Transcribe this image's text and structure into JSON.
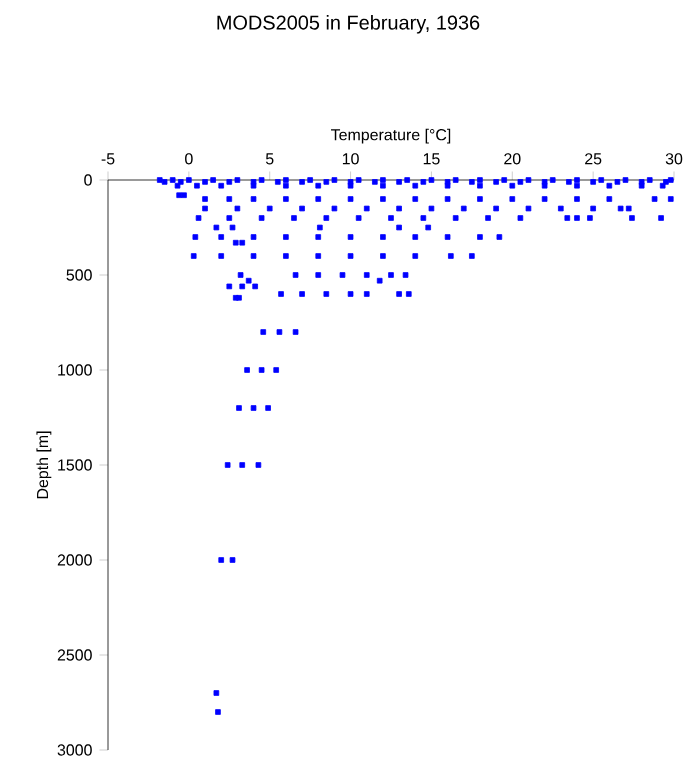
{
  "chart_data": {
    "type": "scatter",
    "title": "MODS2005 in February, 1936",
    "xlabel": "Temperature [°C]",
    "ylabel": "Depth [m]",
    "xlim": [
      -5,
      30
    ],
    "xticks": [
      -5,
      0,
      5,
      10,
      15,
      20,
      25,
      30
    ],
    "ylim": [
      3000,
      0
    ],
    "yticks": [
      0,
      500,
      1000,
      1500,
      2000,
      2500,
      3000
    ],
    "marker": "square",
    "color": "#0000ff",
    "x": [
      -1.8,
      -1,
      0,
      1.5,
      3,
      4.5,
      6,
      7.5,
      9,
      10.5,
      12,
      13.5,
      15,
      16.5,
      18,
      19.5,
      21,
      22.5,
      24,
      25.5,
      27,
      28.5,
      29.8,
      -1.5,
      -0.5,
      1,
      2.5,
      4,
      5.5,
      7,
      8.5,
      10,
      11.5,
      13,
      14.5,
      16,
      17.5,
      19,
      20.5,
      22,
      23.5,
      25,
      26.5,
      28,
      29.5,
      -0.7,
      0.5,
      2,
      4,
      6,
      8,
      10,
      12,
      14,
      16,
      18,
      20,
      22,
      24,
      26,
      28,
      29.3,
      -0.6,
      -0.3,
      1,
      2.5,
      4,
      6,
      8,
      10,
      12,
      14,
      16,
      18,
      20,
      22,
      24,
      26,
      28.8,
      29.8,
      1,
      3,
      5,
      7,
      9,
      11,
      13,
      15,
      17,
      19,
      21,
      23,
      25,
      26.7,
      27.2,
      0.6,
      2.5,
      4.5,
      6.5,
      8.5,
      10.5,
      12.5,
      14.5,
      16.5,
      18.5,
      20.5,
      23.4,
      24,
      24.8,
      27.4,
      29.2,
      1.7,
      2.7,
      8.1,
      13,
      14.8,
      0.4,
      2,
      4,
      6,
      8,
      10,
      12,
      14,
      16,
      18,
      19.2,
      2.9,
      3.3,
      0.3,
      2,
      4,
      6,
      8,
      10,
      12,
      14,
      16.2,
      17.5,
      3.2,
      6.6,
      8,
      9.5,
      11,
      12.5,
      13.4,
      3.7,
      11.8,
      2.5,
      3.3,
      4.1,
      5.7,
      7,
      8.5,
      10,
      11,
      13,
      13.6,
      2.9,
      3.1,
      4.6,
      5.6,
      6.6,
      3.6,
      4.5,
      5.4,
      3.1,
      4,
      4.9,
      2.4,
      3.3,
      4.3,
      2.0,
      2.7,
      1.7,
      1.8
    ],
    "values": [
      0,
      0,
      0,
      0,
      0,
      0,
      0,
      0,
      0,
      0,
      0,
      0,
      0,
      0,
      0,
      0,
      0,
      0,
      0,
      0,
      0,
      0,
      0,
      10,
      10,
      10,
      10,
      10,
      10,
      10,
      10,
      10,
      10,
      10,
      10,
      10,
      10,
      10,
      10,
      10,
      10,
      10,
      10,
      10,
      10,
      30,
      30,
      30,
      30,
      30,
      30,
      30,
      30,
      30,
      30,
      30,
      30,
      30,
      30,
      30,
      30,
      30,
      80,
      80,
      100,
      100,
      100,
      100,
      100,
      100,
      100,
      100,
      100,
      100,
      100,
      100,
      100,
      100,
      100,
      100,
      150,
      150,
      150,
      150,
      150,
      150,
      150,
      150,
      150,
      150,
      150,
      150,
      150,
      150,
      150,
      200,
      200,
      200,
      200,
      200,
      200,
      200,
      200,
      200,
      200,
      200,
      200,
      200,
      200,
      200,
      200,
      250,
      250,
      250,
      250,
      250,
      300,
      300,
      300,
      300,
      300,
      300,
      300,
      300,
      300,
      300,
      300,
      330,
      330,
      400,
      400,
      400,
      400,
      400,
      400,
      400,
      400,
      400,
      400,
      500,
      500,
      500,
      500,
      500,
      500,
      500,
      530,
      530,
      560,
      560,
      560,
      600,
      600,
      600,
      600,
      600,
      600,
      600,
      620,
      620,
      800,
      800,
      800,
      1000,
      1000,
      1000,
      1200,
      1200,
      1200,
      1500,
      1500,
      1500,
      2000,
      2000,
      2700,
      2800
    ]
  }
}
